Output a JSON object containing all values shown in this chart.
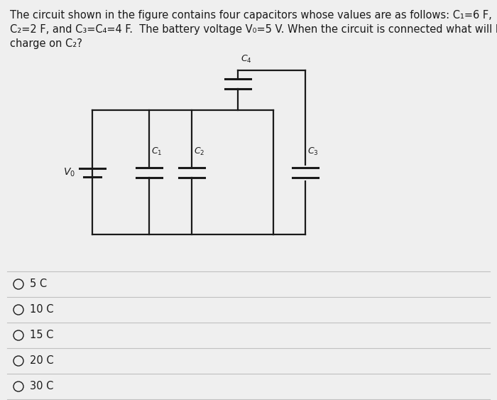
{
  "background_color": "#efefef",
  "title_line1": "The circuit shown in the figure contains four capacitors whose values are as follows: C₁=6 F,",
  "title_line2": "C₂=2 F, and C₃=C₄=4 F.  The battery voltage V₀=5 V. When the circuit is connected what will be",
  "title_line3": "charge on C₂?",
  "choices": [
    "5 C",
    "10 C",
    "15 C",
    "20 C",
    "30 C"
  ],
  "circuit_color": "#1a1a1a",
  "text_color": "#1a1a1a",
  "choice_line_color": "#c0c0c0",
  "font_size_title": 10.5,
  "font_size_choice": 10.5,
  "lw_circuit": 1.6,
  "lw_cap_plate": 2.2
}
